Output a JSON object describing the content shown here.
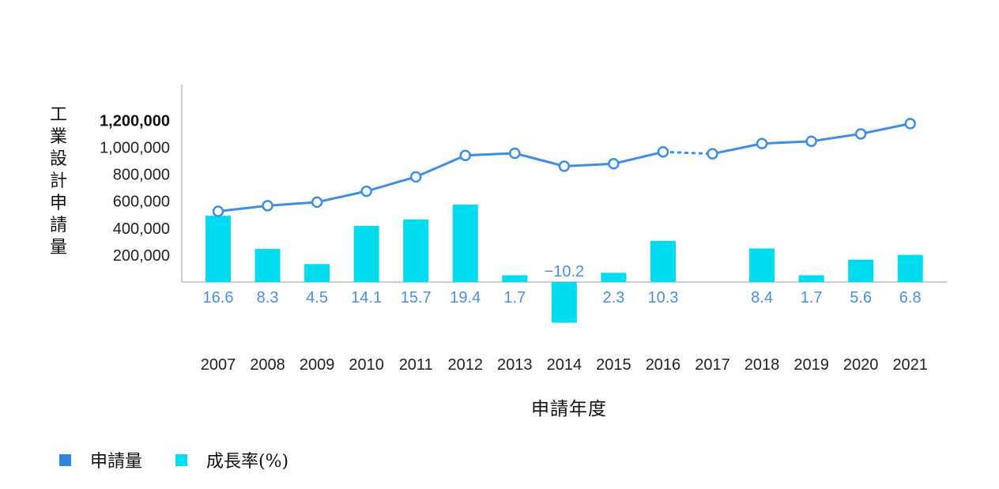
{
  "chart_data": {
    "type": "bar+line",
    "ylabel": "工業設計申請量",
    "xlabel": "申請年度",
    "categories": [
      "2007",
      "2008",
      "2009",
      "2010",
      "2011",
      "2012",
      "2013",
      "2014",
      "2015",
      "2016",
      "2017",
      "2018",
      "2019",
      "2020",
      "2021"
    ],
    "y_ticks": [
      "200,000",
      "400,000",
      "600,000",
      "800,000",
      "1,000,000",
      "1,200,000"
    ],
    "ylim": [
      0,
      1250000
    ],
    "series": [
      {
        "name": "申請量",
        "type": "line",
        "color": "#3c8fe3",
        "values": [
          525000,
          567000,
          593000,
          674000,
          781000,
          940000,
          956000,
          860000,
          878000,
          966000,
          952000,
          1028000,
          1045000,
          1100000,
          1176000
        ],
        "dashed_segment": [
          "2016",
          "2017"
        ]
      },
      {
        "name": "成長率(%)",
        "type": "bar",
        "color": "#00dcef",
        "values": [
          16.6,
          8.3,
          4.5,
          14.1,
          15.7,
          19.4,
          1.7,
          -10.2,
          2.3,
          10.3,
          null,
          8.4,
          1.7,
          5.6,
          6.8
        ],
        "labels": [
          "16.6",
          "8.3",
          "4.5",
          "14.1",
          "15.7",
          "19.4",
          "1.7",
          "−10.2",
          "2.3",
          "10.3",
          "",
          "8.4",
          "1.7",
          "5.6",
          "6.8"
        ],
        "label_color": "#4a90e2"
      }
    ],
    "legend": {
      "position": "bottom-left"
    }
  }
}
